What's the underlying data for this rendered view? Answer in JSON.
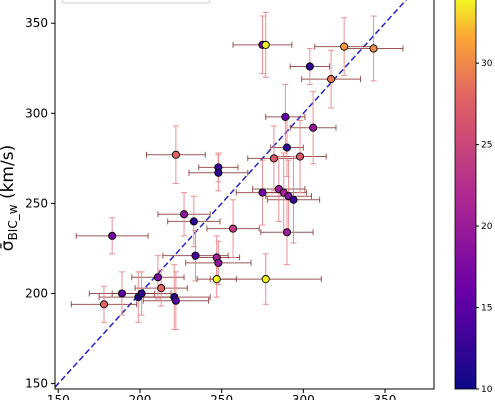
{
  "chart_data": {
    "type": "scatter",
    "title": "",
    "xlabel": "",
    "ylabel": "σ̄BIC_w (km/s)",
    "ylabel_main": "σ̄",
    "ylabel_sub": "BIC_w",
    "ylabel_unit": " (km/s)",
    "xlim": [
      148,
      380
    ],
    "ylim": [
      147,
      364
    ],
    "xticks": [
      150,
      200,
      250,
      300,
      350
    ],
    "yticks": [
      150,
      200,
      250,
      300,
      350
    ],
    "grid": false,
    "colormap": "plasma",
    "colorbar": {
      "ticks": [
        10,
        15,
        20,
        25,
        30
      ],
      "range": [
        10,
        34
      ]
    },
    "reference_line": {
      "style": "dashed",
      "color": "#2323c8",
      "slope": 1,
      "intercept": 0
    },
    "legend": {
      "placement": "top-left",
      "entries": []
    },
    "points": [
      {
        "x": 275,
        "y": 338,
        "xerr": 18,
        "yerr": 16,
        "c": 17
      },
      {
        "x": 277,
        "y": 338,
        "xerr": 0,
        "yerr": 18,
        "c": 34
      },
      {
        "x": 325,
        "y": 337,
        "xerr": 18,
        "yerr": 16,
        "c": 31
      },
      {
        "x": 343,
        "y": 336,
        "xerr": 18,
        "yerr": 18,
        "c": 30
      },
      {
        "x": 304,
        "y": 326,
        "xerr": 12,
        "yerr": 10,
        "c": 12
      },
      {
        "x": 317,
        "y": 319,
        "xerr": 18,
        "yerr": 16,
        "c": 29
      },
      {
        "x": 289,
        "y": 298,
        "xerr": 12,
        "yerr": 18,
        "c": 16
      },
      {
        "x": 306,
        "y": 292,
        "xerr": 14,
        "yerr": 20,
        "c": 19
      },
      {
        "x": 290,
        "y": 281,
        "xerr": 10,
        "yerr": 16,
        "c": 12
      },
      {
        "x": 222,
        "y": 277,
        "xerr": 18,
        "yerr": 16,
        "c": 28
      },
      {
        "x": 248,
        "y": 270,
        "xerr": 12,
        "yerr": 8,
        "c": 13
      },
      {
        "x": 248,
        "y": 267,
        "xerr": 18,
        "yerr": 10,
        "c": 12
      },
      {
        "x": 282,
        "y": 275,
        "xerr": 16,
        "yerr": 18,
        "c": 27
      },
      {
        "x": 298,
        "y": 276,
        "xerr": 16,
        "yerr": 20,
        "c": 27
      },
      {
        "x": 275,
        "y": 256,
        "xerr": 16,
        "yerr": 18,
        "c": 17
      },
      {
        "x": 285,
        "y": 258,
        "xerr": 16,
        "yerr": 18,
        "c": 20
      },
      {
        "x": 288,
        "y": 256,
        "xerr": 14,
        "yerr": 22,
        "c": 21
      },
      {
        "x": 291,
        "y": 254,
        "xerr": 14,
        "yerr": 20,
        "c": 18
      },
      {
        "x": 294,
        "y": 252,
        "xerr": 16,
        "yerr": 24,
        "c": 13
      },
      {
        "x": 227,
        "y": 244,
        "xerr": 16,
        "yerr": 12,
        "c": 19
      },
      {
        "x": 233,
        "y": 240,
        "xerr": 16,
        "yerr": 14,
        "c": 12
      },
      {
        "x": 257,
        "y": 236,
        "xerr": 16,
        "yerr": 16,
        "c": 24
      },
      {
        "x": 183,
        "y": 232,
        "xerr": 22,
        "yerr": 10,
        "c": 17
      },
      {
        "x": 290,
        "y": 234,
        "xerr": 16,
        "yerr": 18,
        "c": 20
      },
      {
        "x": 234,
        "y": 221,
        "xerr": 20,
        "yerr": 14,
        "c": 14
      },
      {
        "x": 247,
        "y": 220,
        "xerr": 14,
        "yerr": 12,
        "c": 21
      },
      {
        "x": 248,
        "y": 217,
        "xerr": 20,
        "yerr": 12,
        "c": 19
      },
      {
        "x": 211,
        "y": 209,
        "xerr": 16,
        "yerr": 12,
        "c": 18
      },
      {
        "x": 247,
        "y": 208,
        "xerr": 12,
        "yerr": 10,
        "c": 34
      },
      {
        "x": 277,
        "y": 208,
        "xerr": 34,
        "yerr": 14,
        "c": 34
      },
      {
        "x": 213,
        "y": 203,
        "xerr": 16,
        "yerr": 10,
        "c": 28
      },
      {
        "x": 189,
        "y": 200,
        "xerr": 20,
        "yerr": 12,
        "c": 15
      },
      {
        "x": 199,
        "y": 198,
        "xerr": 24,
        "yerr": 14,
        "c": 11
      },
      {
        "x": 201,
        "y": 200,
        "xerr": 18,
        "yerr": 12,
        "c": 12
      },
      {
        "x": 221,
        "y": 198,
        "xerr": 22,
        "yerr": 18,
        "c": 12
      },
      {
        "x": 222,
        "y": 196,
        "xerr": 20,
        "yerr": 16,
        "c": 15
      },
      {
        "x": 178,
        "y": 194,
        "xerr": 20,
        "yerr": 10,
        "c": 28
      }
    ]
  }
}
